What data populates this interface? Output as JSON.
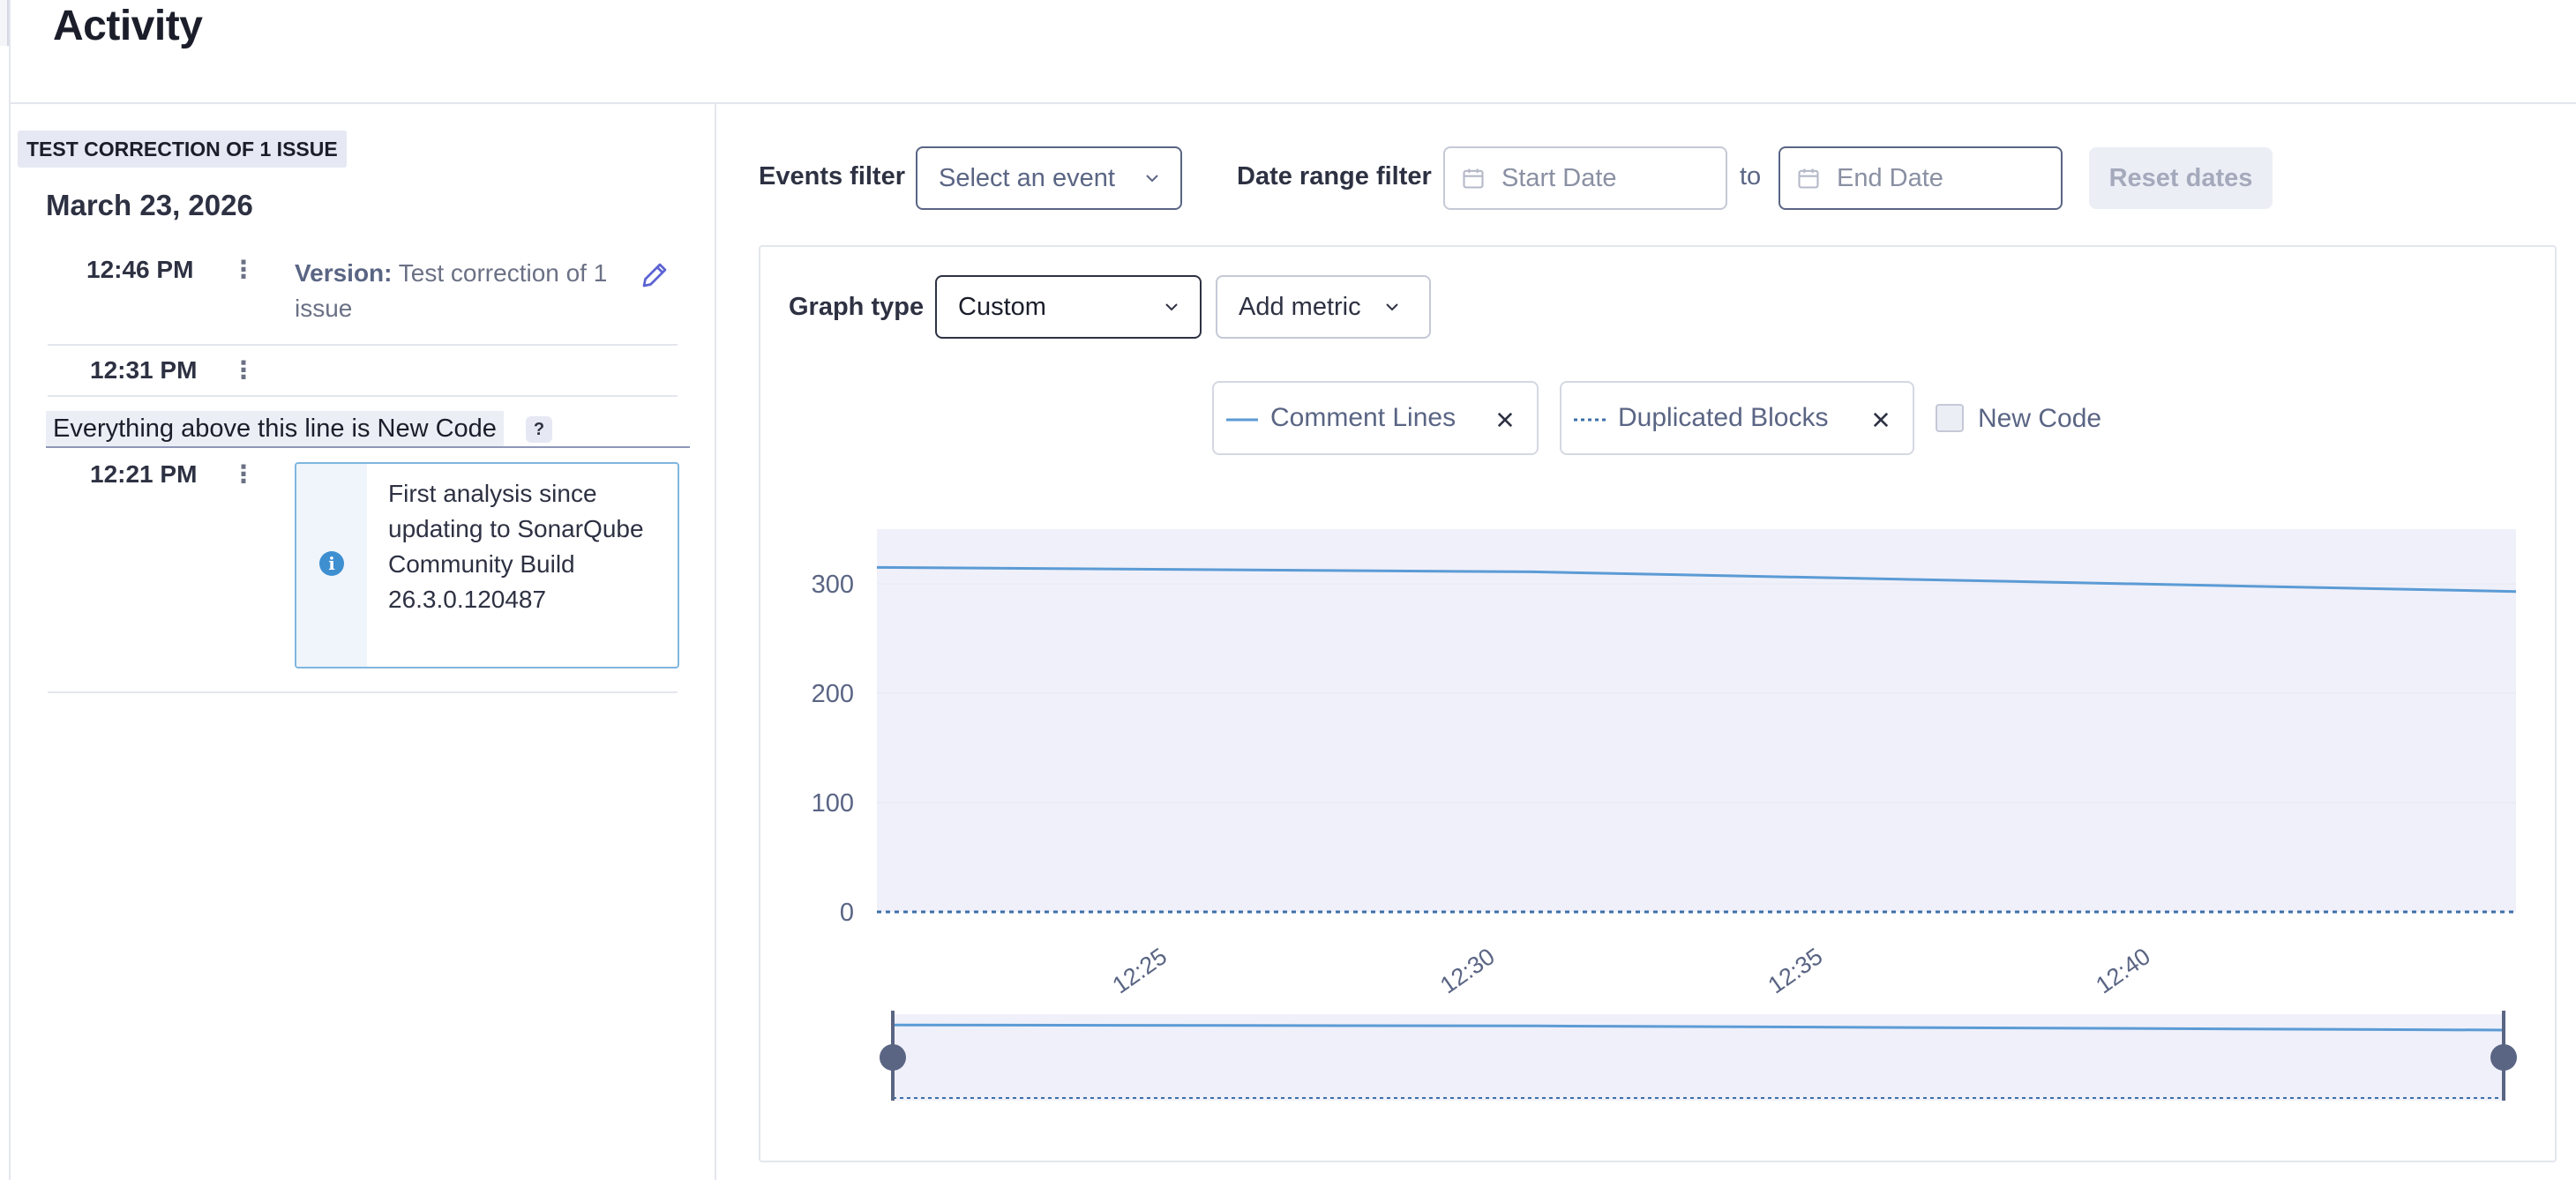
{
  "page": {
    "title": "Activity"
  },
  "sidebar": {
    "version_tag": "TEST CORRECTION OF 1 ISSUE",
    "date_heading": "March 23, 2026",
    "events": [
      {
        "time": "12:46 PM",
        "version_label": "Version:",
        "version_value": "Test correction of 1 issue"
      },
      {
        "time": "12:31 PM"
      },
      {
        "time": "12:21 PM",
        "info_text": "First analysis since updating to SonarQube Community Build 26.3.0.120487"
      }
    ],
    "new_code_marker": "Everything above this line is New Code",
    "help_badge": "?"
  },
  "filters": {
    "events_label": "Events filter",
    "events_select": "Select an event",
    "date_range_label": "Date range filter",
    "start_placeholder": "Start Date",
    "to_label": "to",
    "end_placeholder": "End Date",
    "reset_label": "Reset dates"
  },
  "graph": {
    "type_label": "Graph type",
    "type_value": "Custom",
    "add_metric_label": "Add metric",
    "legend": [
      {
        "name": "Comment Lines",
        "style": "solid"
      },
      {
        "name": "Duplicated Blocks",
        "style": "dotted"
      }
    ],
    "new_code_label": "New Code"
  },
  "colors": {
    "series": "#5b9bd5",
    "dotted_series": "#3d6fa8",
    "plot_bg": "#eff0fa",
    "accent": "#5a6584"
  },
  "chart_data": {
    "type": "line",
    "x": [
      "12:21",
      "12:31",
      "12:46"
    ],
    "x_ticks": [
      "12:25",
      "12:30",
      "12:35",
      "12:40"
    ],
    "y_ticks": [
      "300",
      "200",
      "100",
      "0"
    ],
    "ylim": [
      0,
      350
    ],
    "series": [
      {
        "name": "Comment Lines",
        "values": [
          315,
          311,
          293
        ]
      },
      {
        "name": "Duplicated Blocks",
        "values": [
          0,
          0,
          0
        ]
      }
    ]
  }
}
